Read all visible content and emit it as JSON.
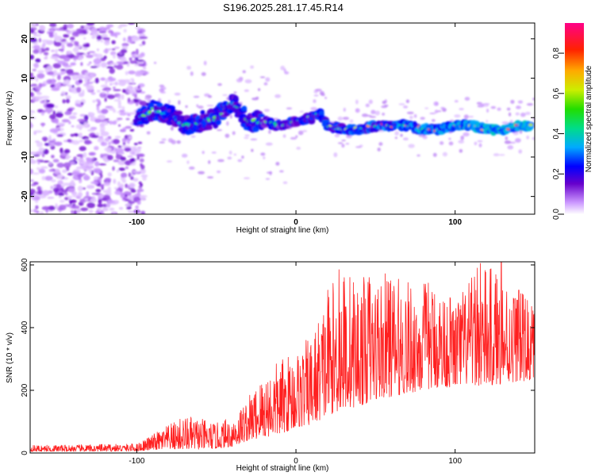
{
  "title": "S196.2025.281.17.45.R14",
  "chart_data": [
    {
      "type": "heatmap",
      "xlabel": "Height of straight line (km)",
      "ylabel": "Frequency (Hz)",
      "xlim": [
        -167,
        150
      ],
      "ylim": [
        -24.5,
        24
      ],
      "xticks": [
        {
          "value": -100,
          "label": "-100"
        },
        {
          "value": 0,
          "label": "0"
        },
        {
          "value": 100,
          "label": "100"
        }
      ],
      "yticks": [
        {
          "value": 20,
          "label": "20"
        },
        {
          "value": 10,
          "label": "10"
        },
        {
          "value": 0,
          "label": "0"
        },
        {
          "value": -10,
          "label": "-10"
        },
        {
          "value": -20,
          "label": "-20"
        }
      ],
      "ridge": {
        "x": [
          -100,
          -90,
          -80,
          -70,
          -60,
          -50,
          -40,
          -30,
          -20,
          -10,
          0,
          10,
          15,
          20,
          30,
          40,
          50,
          60,
          70,
          80,
          90,
          100,
          110,
          120,
          130,
          140,
          148
        ],
        "y": [
          0,
          2,
          1,
          -2,
          -1,
          0,
          4,
          -1,
          -1,
          -2,
          -1,
          0,
          1,
          -2,
          -3,
          -3,
          -2,
          -2,
          -2,
          -3,
          -3,
          -2,
          -2,
          -3,
          -3,
          -2,
          -2
        ]
      },
      "colorbar": {
        "label": "Normalized spectral amplitude",
        "range": [
          0,
          0.95
        ],
        "ticks": [
          {
            "value": 0,
            "label": "0.0"
          },
          {
            "value": 0.2,
            "label": "0.2"
          },
          {
            "value": 0.4,
            "label": "0.4"
          },
          {
            "value": 0.6,
            "label": "0.6"
          },
          {
            "value": 0.8,
            "label": "0.8"
          }
        ]
      }
    },
    {
      "type": "line",
      "xlabel": "Height of straight line (km)",
      "ylabel": "SNR (10 * v/v)",
      "xlim": [
        -167,
        150
      ],
      "ylim": [
        0,
        610
      ],
      "xticks": [
        {
          "value": -100,
          "label": "-100"
        },
        {
          "value": 0,
          "label": "0"
        },
        {
          "value": 100,
          "label": "100"
        }
      ],
      "yticks": [
        {
          "value": 0,
          "label": "0"
        },
        {
          "value": 200,
          "label": "200"
        },
        {
          "value": 400,
          "label": "400"
        },
        {
          "value": 600,
          "label": "600"
        }
      ],
      "series": [
        {
          "name": "SNR",
          "color": "#ff2020",
          "envelope_x": [
            -167,
            -130,
            -100,
            -90,
            -80,
            -70,
            -60,
            -50,
            -40,
            -30,
            -20,
            -10,
            0,
            10,
            20,
            30,
            40,
            50,
            60,
            70,
            80,
            90,
            100,
            110,
            120,
            130,
            140,
            150
          ],
          "envelope_low": [
            5,
            5,
            6,
            10,
            12,
            12,
            12,
            14,
            20,
            40,
            50,
            60,
            80,
            90,
            120,
            140,
            150,
            170,
            180,
            190,
            200,
            210,
            210,
            220,
            210,
            220,
            230,
            230
          ],
          "envelope_high": [
            25,
            27,
            30,
            60,
            90,
            120,
            110,
            95,
            120,
            180,
            260,
            300,
            330,
            380,
            520,
            600,
            560,
            580,
            570,
            550,
            560,
            540,
            500,
            560,
            600,
            580,
            520,
            480
          ],
          "peaks": [
            {
              "x": 27,
              "y": 585
            },
            {
              "x": 20,
              "y": 520
            },
            {
              "x": 46,
              "y": 560
            },
            {
              "x": 58,
              "y": 545
            },
            {
              "x": 114,
              "y": 590
            },
            {
              "x": 116,
              "y": 605
            },
            {
              "x": 129,
              "y": 610
            },
            {
              "x": 140,
              "y": 520
            }
          ]
        }
      ]
    }
  ]
}
